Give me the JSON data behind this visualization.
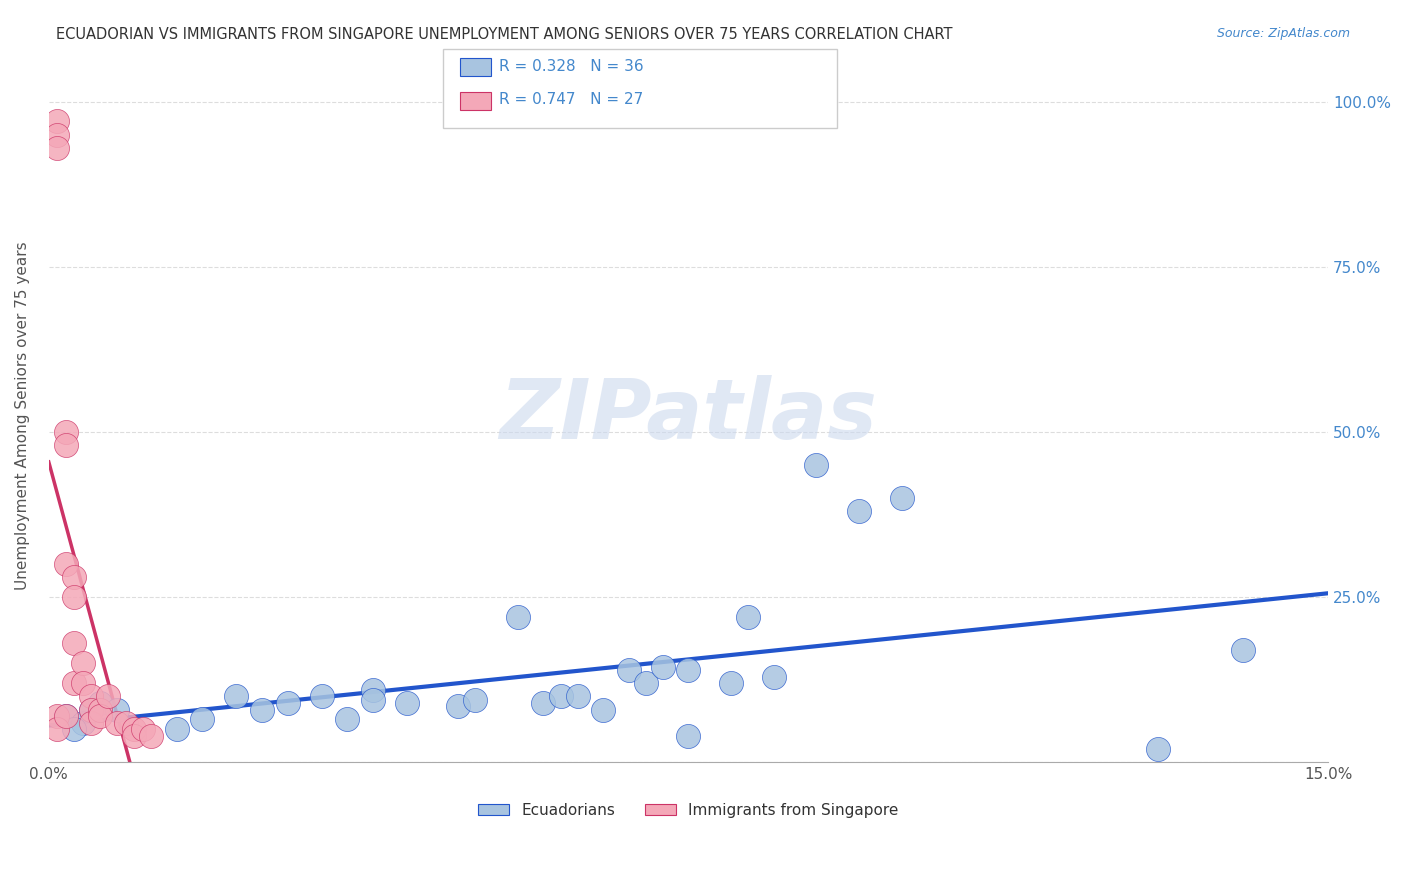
{
  "title": "ECUADORIAN VS IMMIGRANTS FROM SINGAPORE UNEMPLOYMENT AMONG SENIORS OVER 75 YEARS CORRELATION CHART",
  "source": "Source: ZipAtlas.com",
  "xlabel": "",
  "ylabel": "Unemployment Among Seniors over 75 years",
  "xlim": [
    0.0,
    0.15
  ],
  "ylim": [
    0.0,
    1.05
  ],
  "xticks": [
    0.0,
    0.025,
    0.05,
    0.075,
    0.1,
    0.125,
    0.15
  ],
  "xticklabels": [
    "0.0%",
    "",
    "",
    "",
    "",
    "",
    "15.0%"
  ],
  "yticks": [
    0.0,
    0.25,
    0.5,
    0.75,
    1.0
  ],
  "yticklabels": [
    "",
    "25.0%",
    "50.0%",
    "75.0%",
    "100.0%"
  ],
  "blue_R": 0.328,
  "blue_N": 36,
  "pink_R": 0.747,
  "pink_N": 27,
  "blue_color": "#a8c4e0",
  "pink_color": "#f4a8b8",
  "blue_line_color": "#2255cc",
  "pink_line_color": "#cc3366",
  "watermark": "ZIPatlas",
  "legend_label_blue": "Ecuadorians",
  "legend_label_pink": "Immigrants from Singapore",
  "blue_scatter_x": [
    0.002,
    0.004,
    0.005,
    0.003,
    0.006,
    0.008,
    0.015,
    0.018,
    0.022,
    0.025,
    0.028,
    0.032,
    0.035,
    0.038,
    0.038,
    0.042,
    0.048,
    0.05,
    0.055,
    0.058,
    0.06,
    0.062,
    0.065,
    0.068,
    0.07,
    0.072,
    0.075,
    0.075,
    0.08,
    0.082,
    0.085,
    0.09,
    0.095,
    0.1,
    0.13,
    0.14
  ],
  "blue_scatter_y": [
    0.07,
    0.06,
    0.08,
    0.05,
    0.09,
    0.08,
    0.05,
    0.065,
    0.1,
    0.08,
    0.09,
    0.1,
    0.065,
    0.11,
    0.095,
    0.09,
    0.085,
    0.095,
    0.22,
    0.09,
    0.1,
    0.1,
    0.08,
    0.14,
    0.12,
    0.145,
    0.14,
    0.04,
    0.12,
    0.22,
    0.13,
    0.45,
    0.38,
    0.4,
    0.02,
    0.17
  ],
  "pink_scatter_x": [
    0.001,
    0.001,
    0.001,
    0.001,
    0.001,
    0.002,
    0.002,
    0.002,
    0.002,
    0.003,
    0.003,
    0.003,
    0.003,
    0.004,
    0.004,
    0.005,
    0.005,
    0.005,
    0.006,
    0.006,
    0.007,
    0.008,
    0.009,
    0.01,
    0.01,
    0.011,
    0.012
  ],
  "pink_scatter_y": [
    0.97,
    0.95,
    0.93,
    0.07,
    0.05,
    0.5,
    0.48,
    0.3,
    0.07,
    0.28,
    0.25,
    0.18,
    0.12,
    0.15,
    0.12,
    0.1,
    0.08,
    0.06,
    0.08,
    0.07,
    0.1,
    0.06,
    0.06,
    0.05,
    0.04,
    0.05,
    0.04
  ],
  "grid_color": "#dddddd",
  "background_color": "#ffffff"
}
